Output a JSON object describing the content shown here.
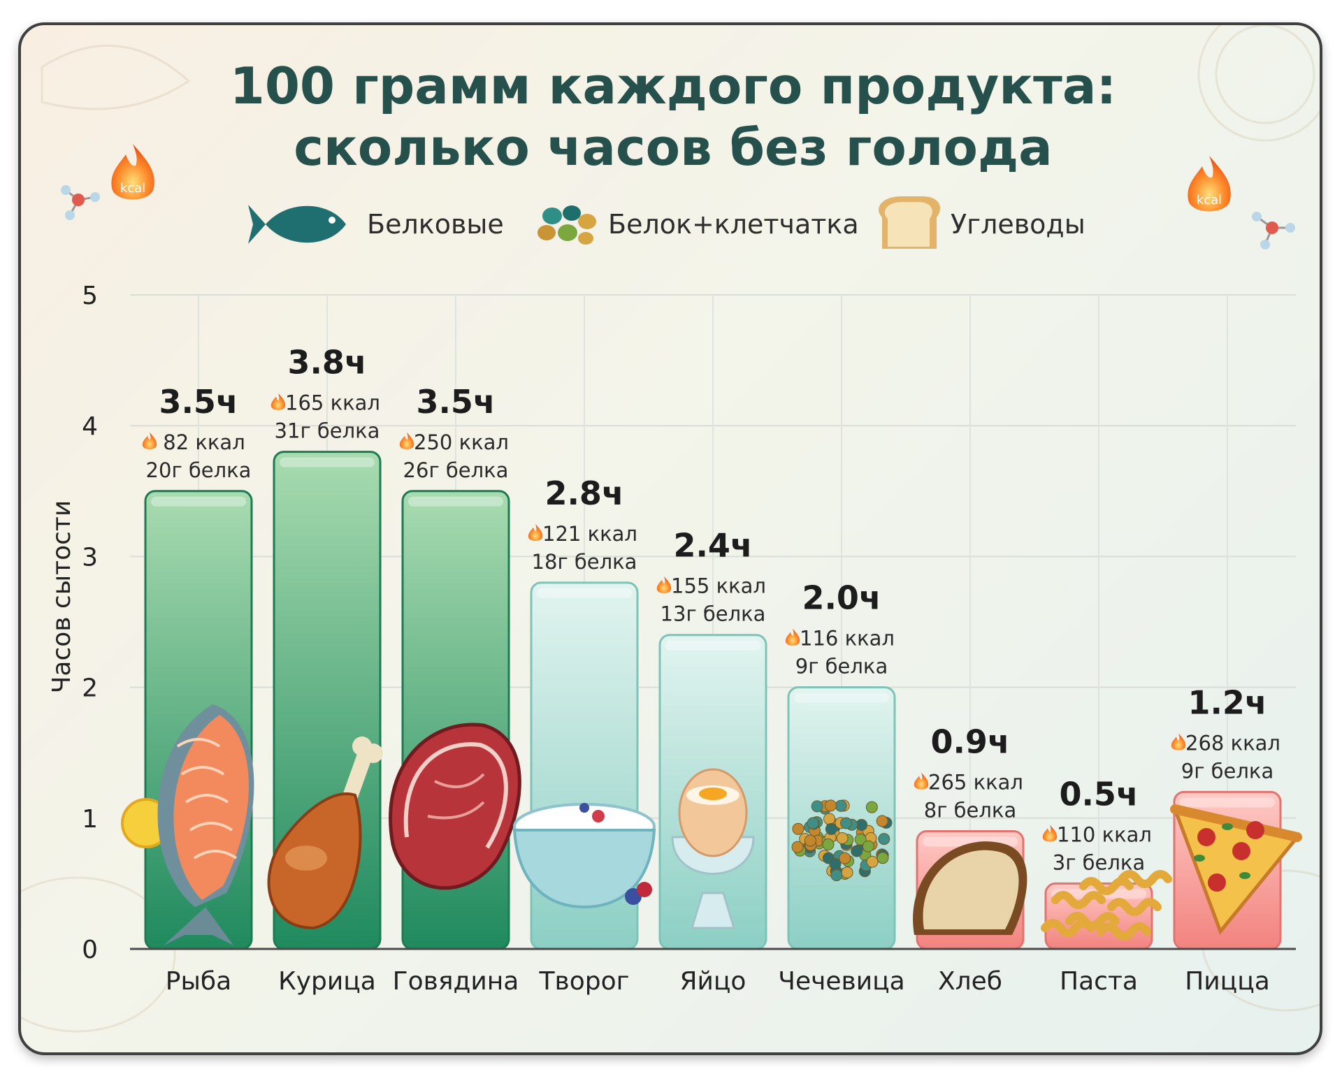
{
  "title_line1": "100 грамм каждого продукта:",
  "title_line2": "сколько часов без голода",
  "badge_text": "kcal",
  "legend": [
    {
      "label": "Белковые",
      "icon": "fish-icon",
      "color": "#2e8b6e"
    },
    {
      "label": "Белок+клетчатка",
      "icon": "beans-icon",
      "color": "#5fb3a8"
    },
    {
      "label": "Углеводы",
      "icon": "bread-icon",
      "color": "#f08a8a"
    }
  ],
  "colors": {
    "protein_top": "#a9dbb0",
    "protein_bottom": "#1f8a5e",
    "fiber_top": "#e2f4ef",
    "fiber_bottom": "#8ccfc4",
    "carb_top": "#ffc9c4",
    "carb_bottom": "#f2837f"
  },
  "chart_data": {
    "type": "bar",
    "ylabel": "Часов сытости",
    "xlabel": "",
    "ylim": [
      0,
      5
    ],
    "yticks": [
      "0",
      "1",
      "2",
      "3",
      "4",
      "5"
    ],
    "grid": true,
    "legend_position": "top",
    "categories": [
      "Рыба",
      "Курица",
      "Говядина",
      "Творог",
      "Яйцо",
      "Чечевица",
      "Хлеб",
      "Паста",
      "Пицца"
    ],
    "values": [
      3.5,
      3.8,
      3.5,
      2.8,
      2.4,
      2.0,
      0.9,
      0.5,
      1.2
    ],
    "groups": [
      "protein",
      "protein",
      "protein",
      "fiber",
      "fiber",
      "fiber",
      "carb",
      "carb",
      "carb"
    ],
    "icons": [
      "salmon-icon",
      "chicken-leg-icon",
      "steak-icon",
      "cottage-cheese-icon",
      "egg-icon",
      "lentils-icon",
      "bread-slice-icon",
      "pasta-icon",
      "pizza-icon"
    ],
    "value_labels": [
      "3.5ч",
      "3.8ч",
      "3.5ч",
      "2.8ч",
      "2.4ч",
      "2.0ч",
      "0.9ч",
      "0.5ч",
      "1.2ч"
    ],
    "kcal_labels": [
      "82 ккал",
      "165 ккал",
      "250 ккал",
      "121 ккал",
      "155 ккал",
      "116 ккал",
      "265 ккал",
      "110 ккал",
      "268 ккал"
    ],
    "protein_labels": [
      "20г белка",
      "31г белка",
      "26г белка",
      "18г белка",
      "13г белка",
      "9г белка",
      "8г белка",
      "3г белка",
      "9г белка"
    ]
  }
}
